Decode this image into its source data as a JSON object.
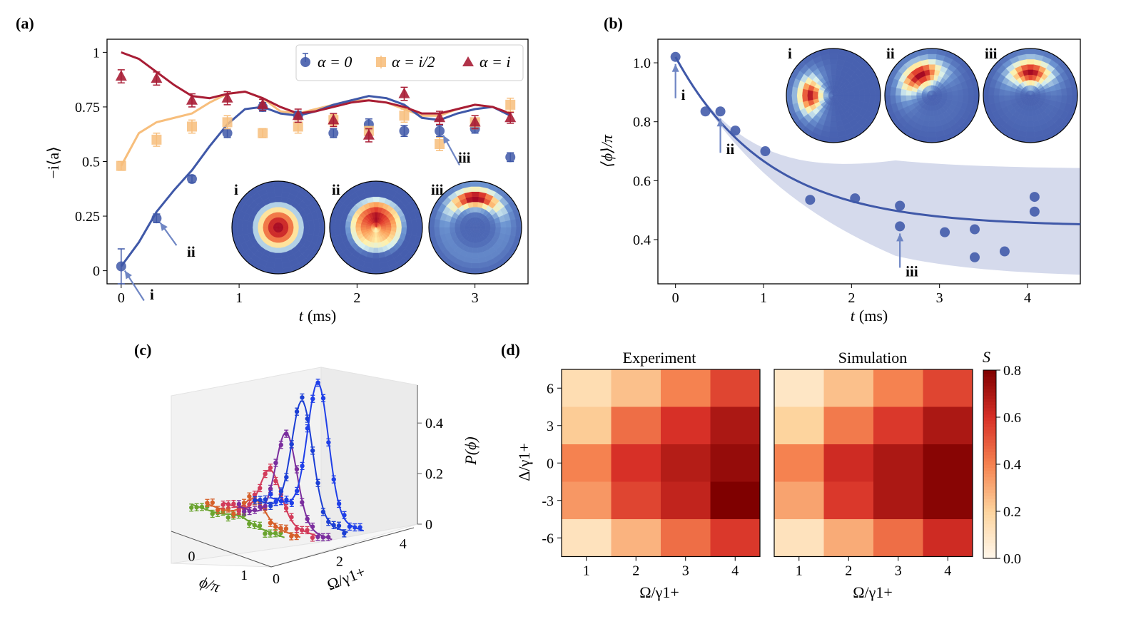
{
  "chart_data": [
    {
      "panel": "(a)",
      "type": "line",
      "ylabel": "−i⟨a⟩",
      "xlabel_var": "t",
      "xlabel_unit": "(ms)",
      "xlim": [
        -0.12,
        3.45
      ],
      "ylim": [
        -0.06,
        1.06
      ],
      "xticks": [
        0,
        1,
        2,
        3
      ],
      "yticks": [
        {
          "v": 0,
          "label": "0"
        },
        {
          "v": 0.25,
          "label": "0.25"
        },
        {
          "v": 0.5,
          "label": "0.5"
        },
        {
          "v": 0.75,
          "label": "0.75"
        },
        {
          "v": 1,
          "label": "1"
        }
      ],
      "legend": [
        "α = 0",
        "α = i/2",
        "α = i"
      ],
      "series": [
        {
          "name": "α = 0",
          "color": "#3f58a8",
          "points": [
            [
              0,
              0.02,
              0.08
            ],
            [
              0.3,
              0.24,
              0.02
            ],
            [
              0.6,
              0.42,
              0.015
            ],
            [
              0.9,
              0.63,
              0.02
            ],
            [
              1.2,
              0.75,
              0.02
            ],
            [
              1.5,
              0.71,
              0.02
            ],
            [
              1.8,
              0.63,
              0.02
            ],
            [
              2.1,
              0.67,
              0.025
            ],
            [
              2.4,
              0.64,
              0.025
            ],
            [
              2.7,
              0.64,
              0.025
            ],
            [
              3.0,
              0.65,
              0.02
            ],
            [
              3.3,
              0.52,
              0.02
            ]
          ],
          "fit": [
            [
              0,
              0.02
            ],
            [
              0.15,
              0.13
            ],
            [
              0.3,
              0.27
            ],
            [
              0.45,
              0.37
            ],
            [
              0.6,
              0.46
            ],
            [
              0.75,
              0.57
            ],
            [
              0.9,
              0.67
            ],
            [
              1.05,
              0.74
            ],
            [
              1.2,
              0.75
            ],
            [
              1.35,
              0.72
            ],
            [
              1.5,
              0.71
            ],
            [
              1.65,
              0.73
            ],
            [
              1.8,
              0.76
            ],
            [
              1.95,
              0.78
            ],
            [
              2.1,
              0.8
            ],
            [
              2.25,
              0.79
            ],
            [
              2.4,
              0.76
            ],
            [
              2.55,
              0.7
            ],
            [
              2.7,
              0.69
            ],
            [
              2.85,
              0.72
            ],
            [
              3.0,
              0.74
            ],
            [
              3.15,
              0.75
            ],
            [
              3.3,
              0.71
            ]
          ]
        },
        {
          "name": "α = i/2",
          "color": "#f7be7c",
          "points": [
            [
              0,
              0.48,
              0.02
            ],
            [
              0.3,
              0.6,
              0.03
            ],
            [
              0.6,
              0.66,
              0.03
            ],
            [
              0.9,
              0.68,
              0.03
            ],
            [
              1.2,
              0.63,
              0.02
            ],
            [
              1.5,
              0.66,
              0.03
            ],
            [
              1.8,
              0.69,
              0.025
            ],
            [
              2.1,
              0.64,
              0.02
            ],
            [
              2.4,
              0.71,
              0.03
            ],
            [
              2.7,
              0.58,
              0.03
            ],
            [
              3.0,
              0.68,
              0.03
            ],
            [
              3.3,
              0.76,
              0.03
            ]
          ],
          "fit": [
            [
              0,
              0.48
            ],
            [
              0.15,
              0.63
            ],
            [
              0.3,
              0.68
            ],
            [
              0.45,
              0.7
            ],
            [
              0.6,
              0.72
            ],
            [
              0.75,
              0.77
            ],
            [
              0.9,
              0.81
            ],
            [
              1.05,
              0.82
            ],
            [
              1.2,
              0.79
            ],
            [
              1.35,
              0.73
            ],
            [
              1.5,
              0.72
            ],
            [
              1.65,
              0.74
            ],
            [
              1.8,
              0.76
            ],
            [
              1.95,
              0.78
            ],
            [
              2.1,
              0.78
            ],
            [
              2.25,
              0.77
            ],
            [
              2.4,
              0.74
            ],
            [
              2.55,
              0.71
            ],
            [
              2.7,
              0.71
            ],
            [
              2.85,
              0.74
            ],
            [
              3.0,
              0.76
            ],
            [
              3.15,
              0.75
            ],
            [
              3.3,
              0.72
            ]
          ]
        },
        {
          "name": "α = i",
          "color": "#a81d35",
          "points": [
            [
              0,
              0.89,
              0.03
            ],
            [
              0.3,
              0.88,
              0.03
            ],
            [
              0.6,
              0.78,
              0.03
            ],
            [
              0.9,
              0.79,
              0.03
            ],
            [
              1.2,
              0.76,
              0.025
            ],
            [
              1.5,
              0.71,
              0.03
            ],
            [
              1.8,
              0.69,
              0.03
            ],
            [
              2.1,
              0.62,
              0.03
            ],
            [
              2.4,
              0.81,
              0.03
            ],
            [
              2.7,
              0.7,
              0.03
            ],
            [
              3.0,
              0.68,
              0.03
            ],
            [
              3.3,
              0.7,
              0.025
            ]
          ],
          "fit": [
            [
              0,
              1.0
            ],
            [
              0.15,
              0.97
            ],
            [
              0.3,
              0.91
            ],
            [
              0.45,
              0.85
            ],
            [
              0.6,
              0.8
            ],
            [
              0.75,
              0.79
            ],
            [
              0.9,
              0.81
            ],
            [
              1.05,
              0.82
            ],
            [
              1.2,
              0.79
            ],
            [
              1.35,
              0.75
            ],
            [
              1.5,
              0.72
            ],
            [
              1.65,
              0.73
            ],
            [
              1.8,
              0.75
            ],
            [
              1.95,
              0.77
            ],
            [
              2.1,
              0.78
            ],
            [
              2.25,
              0.77
            ],
            [
              2.4,
              0.75
            ],
            [
              2.55,
              0.72
            ],
            [
              2.7,
              0.72
            ],
            [
              2.85,
              0.74
            ],
            [
              3.0,
              0.76
            ],
            [
              3.15,
              0.75
            ],
            [
              3.3,
              0.72
            ]
          ]
        }
      ],
      "annotations": [
        {
          "label": "i",
          "x": 0,
          "y": 0.02
        },
        {
          "label": "ii",
          "x": 0.3,
          "y": 0.24
        },
        {
          "label": "iii",
          "x": 2.7,
          "y": 0.64
        }
      ],
      "insets": [
        {
          "label": "i",
          "kind": "ring",
          "peak_dir_deg": null,
          "sharp": 0
        },
        {
          "label": "ii",
          "kind": "ring",
          "peak_dir_deg": 90,
          "sharp": 0.5
        },
        {
          "label": "iii",
          "kind": "crescent",
          "peak_dir_deg": 90,
          "sharp": 1
        }
      ]
    },
    {
      "panel": "(b)",
      "type": "line",
      "ylabel": "⟨ϕ⟩/π",
      "xlabel_var": "t",
      "xlabel_unit": "(ms)",
      "xlim": [
        -0.2,
        4.6
      ],
      "ylim": [
        0.25,
        1.08
      ],
      "xticks": [
        0,
        1,
        2,
        3,
        4
      ],
      "yticks": [
        {
          "v": 0.4,
          "label": "0.4"
        },
        {
          "v": 0.6,
          "label": "0.6"
        },
        {
          "v": 0.8,
          "label": "0.8"
        },
        {
          "v": 1.0,
          "label": "1.0"
        }
      ],
      "color": "#3f58a8",
      "points": [
        [
          0,
          1.02
        ],
        [
          0.34,
          0.835
        ],
        [
          0.51,
          0.835
        ],
        [
          0.68,
          0.77
        ],
        [
          1.02,
          0.7
        ],
        [
          1.53,
          0.535
        ],
        [
          2.04,
          0.54
        ],
        [
          2.55,
          0.515
        ],
        [
          2.55,
          0.445
        ],
        [
          3.06,
          0.425
        ],
        [
          3.4,
          0.435
        ],
        [
          3.4,
          0.34
        ],
        [
          3.74,
          0.36
        ],
        [
          4.08,
          0.545
        ],
        [
          4.08,
          0.495
        ]
      ],
      "fit_model": {
        "base": 0.445,
        "amp": 0.575,
        "tau_ms": 1.05,
        "band_upper": 0.64,
        "band_lower": 0.27
      },
      "annotations": [
        {
          "label": "i",
          "x": 0,
          "y": 1.02
        },
        {
          "label": "ii",
          "x": 0.51,
          "y": 0.835
        },
        {
          "label": "iii",
          "x": 2.55,
          "y": 0.445
        }
      ],
      "insets": [
        {
          "label": "i",
          "peak_dir_deg": 180,
          "sharp": 1
        },
        {
          "label": "ii",
          "peak_dir_deg": 120,
          "sharp": 0.7
        },
        {
          "label": "iii",
          "peak_dir_deg": 90,
          "sharp": 0.8
        }
      ]
    },
    {
      "panel": "(c)",
      "type": "scatter",
      "xlabel": "ϕ/π",
      "ylabel": "Ω/γ1+",
      "zlabel": "P(ϕ)",
      "xticks": [
        "0",
        "1"
      ],
      "yticks": [
        "0",
        "2",
        "4"
      ],
      "zticks": [
        "0",
        "0.2",
        "0.4"
      ],
      "zlim": [
        0,
        0.55
      ],
      "series": [
        {
          "omega": 0.5,
          "color": "#6aa42f",
          "amp": 0.02,
          "offset": 0.085
        },
        {
          "omega": 1.0,
          "color": "#d6602a",
          "amp": 0.08,
          "offset": 0.07
        },
        {
          "omega": 1.5,
          "color": "#d23b5a",
          "amp": 0.18,
          "offset": 0.06
        },
        {
          "omega": 2.0,
          "color": "#7b2e9e",
          "amp": 0.33,
          "offset": 0.03
        },
        {
          "omega": 2.5,
          "color": "#1c3fd4",
          "amp": 0.42,
          "offset": 0.04
        },
        {
          "omega": 3.0,
          "color": "#1f3fe8",
          "amp": 0.48,
          "offset": 0.03
        }
      ]
    },
    {
      "panel": "(d)",
      "type": "heatmap",
      "titles": [
        "Experiment",
        "Simulation"
      ],
      "xlabel": "Ω/γ1+",
      "ylabel": "Δ/γ1+",
      "x_categories": [
        "1",
        "2",
        "3",
        "4"
      ],
      "y_categories": [
        "6",
        "3",
        "0",
        "-3",
        "-6"
      ],
      "colorbar": {
        "label": "S",
        "min": 0,
        "max": 0.8,
        "ticks": [
          "0.0",
          "0.2",
          "0.4",
          "0.6",
          "0.8"
        ]
      },
      "experiment": [
        [
          0.15,
          0.25,
          0.4,
          0.55
        ],
        [
          0.22,
          0.45,
          0.6,
          0.7
        ],
        [
          0.4,
          0.6,
          0.68,
          0.75
        ],
        [
          0.35,
          0.55,
          0.65,
          0.8
        ],
        [
          0.12,
          0.28,
          0.45,
          0.58
        ]
      ],
      "simulation": [
        [
          0.1,
          0.25,
          0.4,
          0.55
        ],
        [
          0.2,
          0.42,
          0.58,
          0.7
        ],
        [
          0.4,
          0.62,
          0.7,
          0.78
        ],
        [
          0.32,
          0.58,
          0.7,
          0.78
        ],
        [
          0.12,
          0.3,
          0.45,
          0.62
        ]
      ]
    }
  ],
  "panel_labels": [
    "(a)",
    "(b)",
    "(c)",
    "(d)"
  ],
  "roman": [
    "i",
    "ii",
    "iii"
  ]
}
